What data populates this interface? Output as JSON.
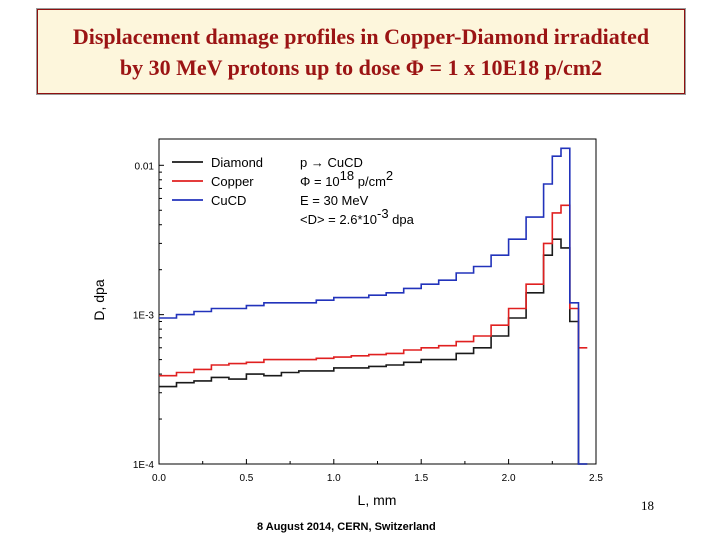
{
  "slide": {
    "title_line1": "Displacement damage profiles in Copper-Diamond irradiated",
    "title_line2": "by 30 MeV protons up to dose Φ = 1 x 10E18 p/cm2",
    "slide_number": "18",
    "footer": "8 August 2014, CERN, Switzerland"
  },
  "chart_data": {
    "type": "line",
    "xlabel": "L, mm",
    "ylabel": "D, dpa",
    "xlim": [
      0.0,
      2.5
    ],
    "ylim": [
      0.0001,
      0.015
    ],
    "yscale": "log",
    "x_ticks": [
      0.0,
      0.5,
      1.0,
      1.5,
      2.0,
      2.5
    ],
    "x_tick_labels": [
      "0.0",
      "0.5",
      "1.0",
      "1.5",
      "2.0",
      "2.5"
    ],
    "y_ticks": [
      0.0001,
      0.001,
      0.01
    ],
    "y_tick_labels": [
      "1E-4",
      "1E-3",
      "0.01"
    ],
    "grid": false,
    "legend_position": "top-left",
    "annotation_lines": [
      {
        "main": "p → CuCD"
      },
      {
        "main": "Φ = 10",
        "sup": "18",
        "tail": " p/cm",
        "sup2": "2"
      },
      {
        "main": "E = 30 MeV"
      },
      {
        "main": "<D> = 2.6*10",
        "sup": "-3",
        "tail": " dpa"
      }
    ],
    "x": [
      0.0,
      0.1,
      0.2,
      0.3,
      0.4,
      0.5,
      0.6,
      0.7,
      0.8,
      0.9,
      1.0,
      1.1,
      1.2,
      1.3,
      1.4,
      1.5,
      1.6,
      1.7,
      1.8,
      1.9,
      2.0,
      2.1,
      2.2,
      2.25,
      2.3,
      2.35,
      2.4
    ],
    "series": [
      {
        "name": "Diamond",
        "color": "#1a1a1a",
        "values": [
          0.00033,
          0.00035,
          0.00036,
          0.00038,
          0.00037,
          0.0004,
          0.00039,
          0.00041,
          0.00042,
          0.00042,
          0.00044,
          0.00044,
          0.00045,
          0.00046,
          0.00048,
          0.0005,
          0.0005,
          0.00055,
          0.0006,
          0.00072,
          0.00095,
          0.0014,
          0.0025,
          0.0032,
          0.0028,
          0.0009,
          0.0001
        ]
      },
      {
        "name": "Copper",
        "color": "#e02020",
        "values": [
          0.00039,
          0.00041,
          0.00043,
          0.00046,
          0.00047,
          0.00048,
          0.0005,
          0.0005,
          0.0005,
          0.00051,
          0.00052,
          0.00053,
          0.00054,
          0.00055,
          0.00058,
          0.0006,
          0.00062,
          0.00066,
          0.00072,
          0.00085,
          0.0011,
          0.0016,
          0.003,
          0.0048,
          0.0054,
          0.0011,
          0.0006
        ]
      },
      {
        "name": "CuCD",
        "color": "#2233bb",
        "values": [
          0.00095,
          0.001,
          0.00105,
          0.0011,
          0.0011,
          0.00115,
          0.0012,
          0.0012,
          0.0012,
          0.00125,
          0.0013,
          0.0013,
          0.00135,
          0.0014,
          0.0015,
          0.0016,
          0.0017,
          0.0019,
          0.0021,
          0.0025,
          0.0032,
          0.0045,
          0.0075,
          0.0115,
          0.013,
          0.0012,
          0.0001
        ]
      }
    ]
  }
}
